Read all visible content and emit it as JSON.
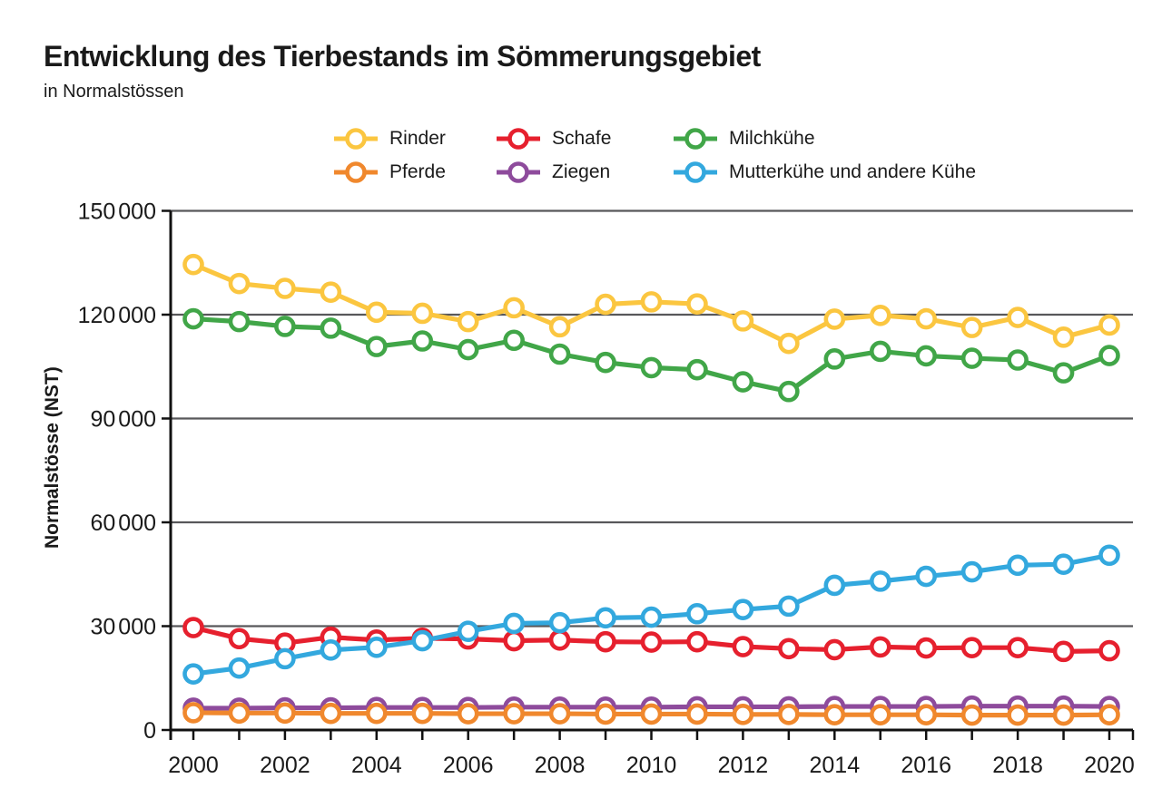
{
  "title": "Entwicklung des Tierbestands im Sömmerungsgebiet",
  "subtitle": "in Normalstössen",
  "chart_data": {
    "type": "line",
    "x": [
      2000,
      2001,
      2002,
      2003,
      2004,
      2005,
      2006,
      2007,
      2008,
      2009,
      2010,
      2011,
      2012,
      2013,
      2014,
      2015,
      2016,
      2017,
      2018,
      2019,
      2020
    ],
    "xlabel": "",
    "ylabel": "Normalstösse (NST)",
    "ylim": [
      0,
      150000
    ],
    "ytick_interval": 30000,
    "ytick_values": [
      0,
      30000,
      60000,
      90000,
      120000,
      150000
    ],
    "ytick_labels": [
      "0",
      "30 000",
      "60 000",
      "90 000",
      "120 000",
      "150 000"
    ],
    "xtick_label_years": [
      "2000",
      "2002",
      "2004",
      "2006",
      "2008",
      "2010",
      "2012",
      "2014",
      "2016",
      "2018",
      "2020"
    ],
    "grid": true,
    "legend_position": "top",
    "marker": "open-circle",
    "series": [
      {
        "name": "Rinder",
        "color": "#FBC640",
        "values": [
          134500,
          129000,
          127600,
          126500,
          120700,
          120400,
          118000,
          122000,
          116500,
          123000,
          123700,
          123100,
          118200,
          111700,
          118700,
          119800,
          118800,
          116300,
          119200,
          113500,
          117000
        ]
      },
      {
        "name": "Schafe",
        "color": "#E6202E",
        "values": [
          29600,
          26400,
          25100,
          26800,
          26000,
          26500,
          26300,
          25800,
          26000,
          25500,
          25400,
          25500,
          24100,
          23500,
          23200,
          24000,
          23700,
          23800,
          23800,
          22700,
          22900
        ]
      },
      {
        "name": "Milchkühe",
        "color": "#41A648",
        "values": [
          118800,
          118000,
          116600,
          116100,
          110800,
          112400,
          109900,
          112600,
          108600,
          106200,
          104700,
          104100,
          100600,
          97800,
          107200,
          109400,
          108100,
          107400,
          106900,
          103200,
          108200
        ]
      },
      {
        "name": "Pferde",
        "color": "#F0882D",
        "values": [
          5000,
          4900,
          4900,
          4800,
          4800,
          4800,
          4700,
          4700,
          4700,
          4600,
          4600,
          4600,
          4500,
          4500,
          4400,
          4400,
          4400,
          4300,
          4300,
          4300,
          4400
        ]
      },
      {
        "name": "Ziegen",
        "color": "#8E4B9C",
        "values": [
          6300,
          6300,
          6400,
          6400,
          6500,
          6500,
          6500,
          6600,
          6600,
          6600,
          6600,
          6700,
          6700,
          6700,
          6800,
          6800,
          6800,
          6900,
          6900,
          6900,
          6800
        ]
      },
      {
        "name": "Mutterkühe und andere Kühe",
        "color": "#33A8DE",
        "values": [
          16200,
          17900,
          20600,
          23100,
          23900,
          25800,
          28500,
          30800,
          31000,
          32400,
          32600,
          33600,
          34800,
          35800,
          41800,
          43000,
          44400,
          45700,
          47600,
          47900,
          50500
        ]
      }
    ],
    "draw_order": [
      2,
      0,
      4,
      3,
      1,
      5
    ]
  },
  "colors": {
    "grid": "#58585A",
    "axis": "#111111",
    "background": "#FFFFFF"
  }
}
